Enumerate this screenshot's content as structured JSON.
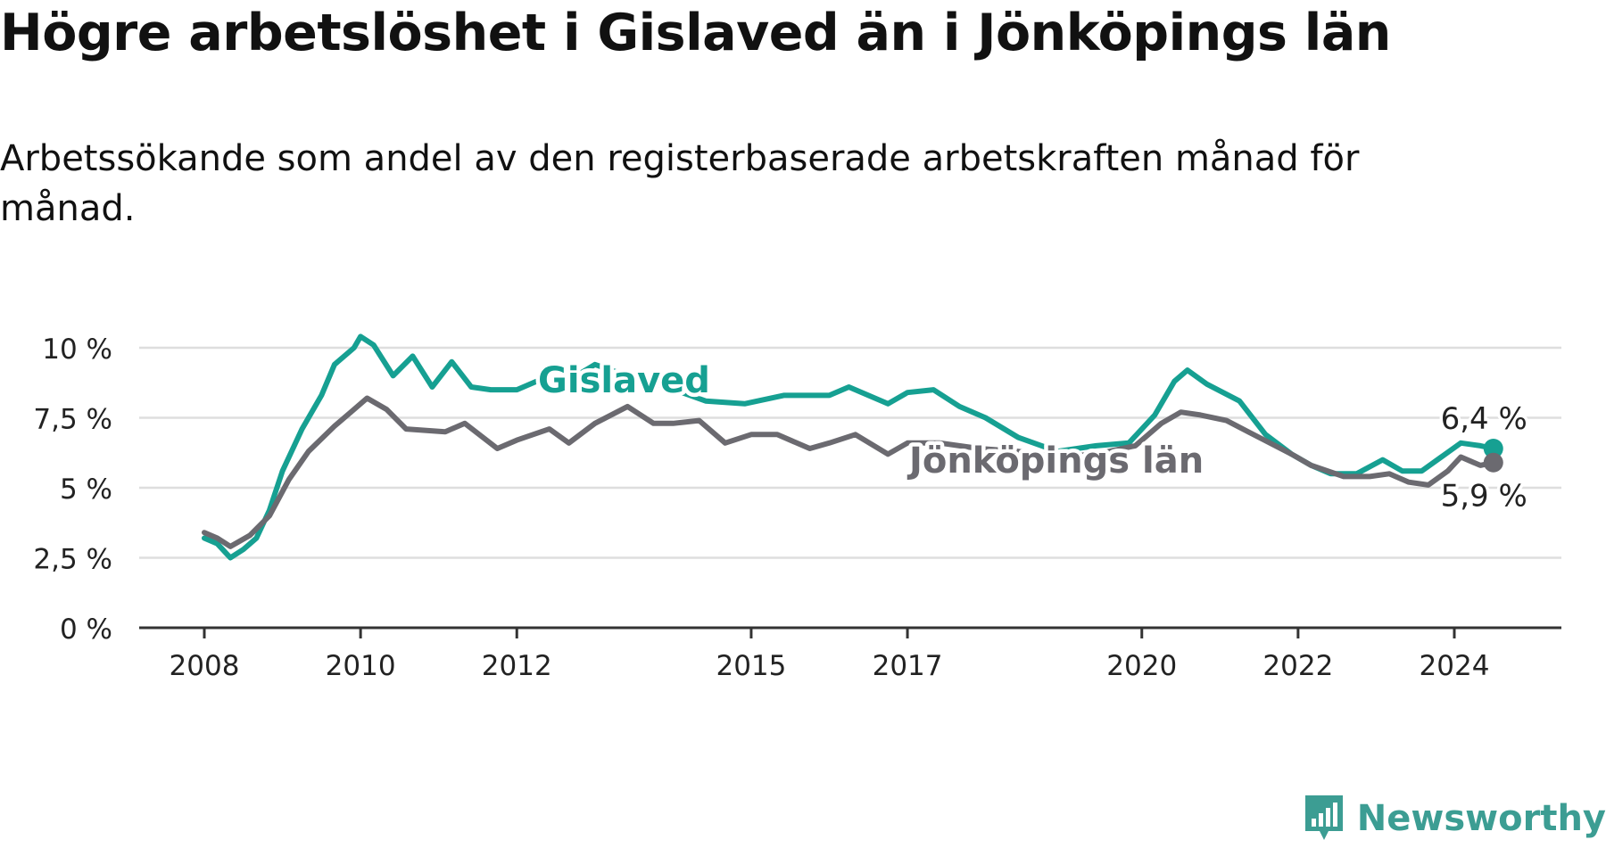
{
  "header": {
    "title": "Högre arbetslöshet i Gislaved än i Jönköpings län",
    "subtitle": "Arbetssökande som andel av den registerbaserade arbetskraften månad för månad."
  },
  "brand": {
    "name": "Newsworthy",
    "icon": "newsworthy-bar-chart-logo-icon",
    "color": "#3c9d93"
  },
  "chart_data": {
    "type": "line",
    "title": "Högre arbetslöshet i Gislaved än i Jönköpings län",
    "subtitle": "Arbetssökande som andel av den registerbaserade arbetskraften månad för månad.",
    "xlabel": "",
    "ylabel": "",
    "xlim": [
      "2008-01",
      "2024-07"
    ],
    "ylim": [
      0,
      10.5
    ],
    "grid": true,
    "legend": "inline labels",
    "y_ticks": [
      {
        "value": 0,
        "label": "0 %"
      },
      {
        "value": 2.5,
        "label": "2,5 %"
      },
      {
        "value": 5,
        "label": "5 %"
      },
      {
        "value": 7.5,
        "label": "7,5 %"
      },
      {
        "value": 10,
        "label": "10 %"
      }
    ],
    "x_ticks": [
      {
        "value": "2008-01",
        "label": "2008"
      },
      {
        "value": "2010-01",
        "label": "2010"
      },
      {
        "value": "2012-01",
        "label": "2012"
      },
      {
        "value": "2015-01",
        "label": "2015"
      },
      {
        "value": "2017-01",
        "label": "2017"
      },
      {
        "value": "2020-01",
        "label": "2020"
      },
      {
        "value": "2022-01",
        "label": "2022"
      },
      {
        "value": "2024-01",
        "label": "2024"
      }
    ],
    "series": [
      {
        "name": "Gislaved",
        "color": "#16a092",
        "end_label": "6,4 %",
        "points": [
          [
            "2008-01",
            3.2
          ],
          [
            "2008-03",
            3.0
          ],
          [
            "2008-05",
            2.5
          ],
          [
            "2008-07",
            2.8
          ],
          [
            "2008-09",
            3.2
          ],
          [
            "2008-11",
            4.2
          ],
          [
            "2009-01",
            5.6
          ],
          [
            "2009-04",
            7.1
          ],
          [
            "2009-07",
            8.3
          ],
          [
            "2009-09",
            9.4
          ],
          [
            "2009-12",
            10.0
          ],
          [
            "2010-01",
            10.4
          ],
          [
            "2010-03",
            10.1
          ],
          [
            "2010-06",
            9.0
          ],
          [
            "2010-09",
            9.7
          ],
          [
            "2010-12",
            8.6
          ],
          [
            "2011-03",
            9.5
          ],
          [
            "2011-06",
            8.6
          ],
          [
            "2011-09",
            8.5
          ],
          [
            "2012-01",
            8.5
          ],
          [
            "2012-04",
            8.8
          ],
          [
            "2012-08",
            8.7
          ],
          [
            "2013-01",
            9.4
          ],
          [
            "2013-06",
            9.0
          ],
          [
            "2013-12",
            8.6
          ],
          [
            "2014-06",
            8.1
          ],
          [
            "2014-12",
            8.0
          ],
          [
            "2015-06",
            8.3
          ],
          [
            "2016-01",
            8.3
          ],
          [
            "2016-04",
            8.6
          ],
          [
            "2016-10",
            8.0
          ],
          [
            "2017-01",
            8.4
          ],
          [
            "2017-05",
            8.5
          ],
          [
            "2017-09",
            7.9
          ],
          [
            "2018-01",
            7.5
          ],
          [
            "2018-06",
            6.8
          ],
          [
            "2018-12",
            6.3
          ],
          [
            "2019-06",
            6.5
          ],
          [
            "2019-11",
            6.6
          ],
          [
            "2020-03",
            7.6
          ],
          [
            "2020-06",
            8.8
          ],
          [
            "2020-08",
            9.2
          ],
          [
            "2020-11",
            8.7
          ],
          [
            "2021-04",
            8.1
          ],
          [
            "2021-08",
            6.9
          ],
          [
            "2021-12",
            6.2
          ],
          [
            "2022-03",
            5.8
          ],
          [
            "2022-06",
            5.5
          ],
          [
            "2022-10",
            5.5
          ],
          [
            "2023-02",
            6.0
          ],
          [
            "2023-05",
            5.6
          ],
          [
            "2023-08",
            5.6
          ],
          [
            "2023-11",
            6.1
          ],
          [
            "2024-02",
            6.6
          ],
          [
            "2024-05",
            6.5
          ],
          [
            "2024-07",
            6.4
          ]
        ]
      },
      {
        "name": "Jönköpings län",
        "color": "#6b6a70",
        "end_label": "5,9 %",
        "points": [
          [
            "2008-01",
            3.4
          ],
          [
            "2008-03",
            3.2
          ],
          [
            "2008-05",
            2.9
          ],
          [
            "2008-08",
            3.3
          ],
          [
            "2008-11",
            4.0
          ],
          [
            "2009-02",
            5.3
          ],
          [
            "2009-05",
            6.3
          ],
          [
            "2009-09",
            7.2
          ],
          [
            "2009-12",
            7.8
          ],
          [
            "2010-02",
            8.2
          ],
          [
            "2010-05",
            7.8
          ],
          [
            "2010-08",
            7.1
          ],
          [
            "2011-02",
            7.0
          ],
          [
            "2011-05",
            7.3
          ],
          [
            "2011-10",
            6.4
          ],
          [
            "2012-01",
            6.7
          ],
          [
            "2012-06",
            7.1
          ],
          [
            "2012-09",
            6.6
          ],
          [
            "2013-01",
            7.3
          ],
          [
            "2013-06",
            7.9
          ],
          [
            "2013-10",
            7.3
          ],
          [
            "2014-01",
            7.3
          ],
          [
            "2014-05",
            7.4
          ],
          [
            "2014-09",
            6.6
          ],
          [
            "2015-01",
            6.9
          ],
          [
            "2015-05",
            6.9
          ],
          [
            "2015-10",
            6.4
          ],
          [
            "2016-01",
            6.6
          ],
          [
            "2016-05",
            6.9
          ],
          [
            "2016-10",
            6.2
          ],
          [
            "2017-01",
            6.6
          ],
          [
            "2017-06",
            6.6
          ],
          [
            "2017-12",
            6.4
          ],
          [
            "2018-06",
            6.3
          ],
          [
            "2018-12",
            6.1
          ],
          [
            "2019-06",
            6.2
          ],
          [
            "2019-12",
            6.5
          ],
          [
            "2020-04",
            7.3
          ],
          [
            "2020-07",
            7.7
          ],
          [
            "2020-10",
            7.6
          ],
          [
            "2021-02",
            7.4
          ],
          [
            "2021-07",
            6.8
          ],
          [
            "2021-12",
            6.2
          ],
          [
            "2022-03",
            5.8
          ],
          [
            "2022-08",
            5.4
          ],
          [
            "2022-12",
            5.4
          ],
          [
            "2023-03",
            5.5
          ],
          [
            "2023-06",
            5.2
          ],
          [
            "2023-09",
            5.1
          ],
          [
            "2023-12",
            5.6
          ],
          [
            "2024-02",
            6.1
          ],
          [
            "2024-05",
            5.8
          ],
          [
            "2024-07",
            5.9
          ]
        ]
      }
    ]
  }
}
